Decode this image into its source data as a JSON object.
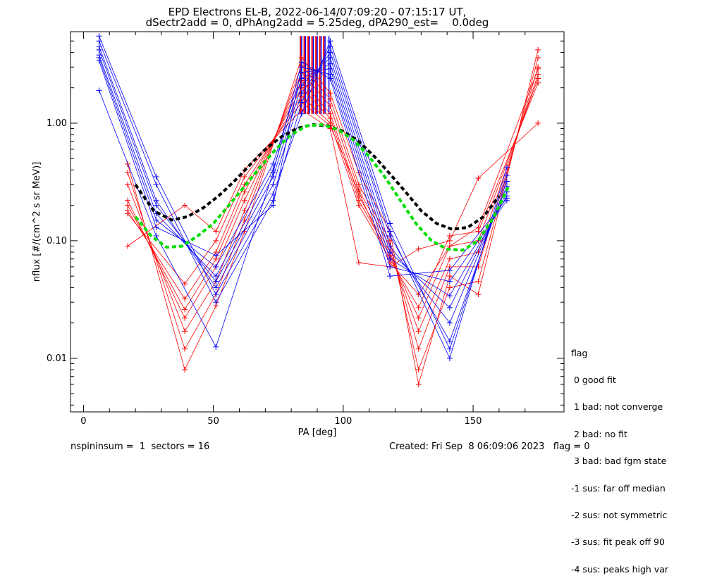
{
  "title_lines": [
    "EPD Electrons EL-B, 2022-06-14/07:09:20 - 07:15:17 UT,",
    "dSectr2add = 0, dPhAng2add = 5.25deg, dPA290_est=    0.0deg"
  ],
  "legend": {
    "title": "flag",
    "items": [
      " 0 good fit",
      " 1 bad: not converge",
      " 2 bad: no fit",
      " 3 bad: bad fgm state",
      "-1 sus: far off median",
      "-2 sus: not symmetric",
      "-3 sus: fit peak off 90",
      "-4 sus: peaks high var"
    ]
  },
  "footer": {
    "left": "nspininsum =  1  sectors = 16",
    "right": "Created: Fri Sep  8 06:09:06 2023   flag = 0"
  },
  "colors": {
    "red_series": "#ff0000",
    "blue_series": "#0000ff",
    "black_fit": "#000000",
    "green_fit": "#00dd00"
  },
  "chart_data": {
    "type": "line",
    "xlabel": "PA [deg]",
    "ylabel": "nflux [#/(cm^2 s sr MeV)]",
    "xlim": [
      -5,
      185
    ],
    "ylim": [
      0.0035,
      6.0
    ],
    "yscale": "log",
    "xticks": [
      0,
      50,
      100,
      150
    ],
    "xtick_labels": [
      "0",
      "50",
      "100",
      "150"
    ],
    "yticks": [
      0.01,
      0.1,
      1.0
    ],
    "ytick_labels": [
      "0.01",
      "0.10",
      "1.00"
    ],
    "grid": false,
    "series": [
      {
        "color": "red",
        "x": [
          17,
          39,
          51,
          62,
          84,
          95,
          106,
          118,
          129,
          141,
          152,
          175
        ],
        "values": [
          0.45,
          0.008,
          0.028,
          0.12,
          3.6,
          1.8,
          0.38,
          0.12,
          0.006,
          0.05,
          0.035,
          4.2
        ]
      },
      {
        "color": "red",
        "x": [
          17,
          39,
          51,
          62,
          84,
          95,
          106,
          118,
          129,
          141,
          152,
          175
        ],
        "values": [
          0.38,
          0.012,
          0.035,
          0.15,
          3.1,
          1.6,
          0.3,
          0.1,
          0.008,
          0.04,
          0.045,
          3.6
        ]
      },
      {
        "color": "red",
        "x": [
          17,
          39,
          51,
          62,
          84,
          95,
          106,
          118,
          129,
          141,
          152,
          175
        ],
        "values": [
          0.3,
          0.017,
          0.045,
          0.18,
          2.7,
          1.4,
          0.27,
          0.09,
          0.012,
          0.06,
          0.06,
          3.0
        ]
      },
      {
        "color": "red",
        "x": [
          17,
          39,
          51,
          62,
          84,
          95,
          106,
          118,
          129,
          141,
          152,
          175
        ],
        "values": [
          0.22,
          0.022,
          0.06,
          0.22,
          2.3,
          1.2,
          0.24,
          0.08,
          0.017,
          0.07,
          0.08,
          2.6
        ]
      },
      {
        "color": "red",
        "x": [
          17,
          39,
          51,
          62,
          84,
          95,
          106,
          118,
          129,
          141,
          152,
          175
        ],
        "values": [
          0.2,
          0.026,
          0.07,
          0.26,
          2.0,
          1.1,
          0.22,
          0.075,
          0.022,
          0.09,
          0.1,
          2.4
        ]
      },
      {
        "color": "red",
        "x": [
          17,
          39,
          51,
          62,
          84,
          95,
          106,
          118,
          129,
          141,
          152,
          175
        ],
        "values": [
          0.18,
          0.032,
          0.08,
          0.3,
          1.7,
          1.0,
          0.2,
          0.07,
          0.027,
          0.11,
          0.12,
          2.2
        ]
      },
      {
        "color": "red",
        "x": [
          17,
          39,
          51,
          62,
          84,
          95,
          106,
          118,
          129,
          141,
          152,
          175
        ],
        "values": [
          0.17,
          0.043,
          0.1,
          0.35,
          1.5,
          0.95,
          0.26,
          0.065,
          0.035,
          0.09,
          0.13,
          2.9
        ]
      },
      {
        "color": "red",
        "x": [
          17,
          39,
          51,
          62,
          84,
          95,
          106,
          118,
          129,
          141,
          152,
          175
        ],
        "values": [
          0.09,
          0.2,
          0.12,
          0.4,
          1.3,
          0.9,
          0.065,
          0.06,
          0.085,
          0.1,
          0.34,
          1.0
        ]
      },
      {
        "color": "blue",
        "x": [
          6,
          28,
          51,
          73,
          84,
          95,
          118,
          141,
          163
        ],
        "values": [
          5.5,
          0.35,
          0.035,
          0.25,
          1.2,
          5.0,
          0.14,
          0.012,
          0.36
        ]
      },
      {
        "color": "blue",
        "x": [
          6,
          28,
          51,
          73,
          84,
          95,
          118,
          141,
          163
        ],
        "values": [
          5.0,
          0.3,
          0.03,
          0.22,
          1.5,
          4.5,
          0.12,
          0.01,
          0.42
        ]
      },
      {
        "color": "blue",
        "x": [
          6,
          28,
          51,
          73,
          84,
          95,
          118,
          141,
          163
        ],
        "values": [
          4.5,
          0.22,
          0.04,
          0.3,
          1.8,
          4.0,
          0.11,
          0.014,
          0.32
        ]
      },
      {
        "color": "blue",
        "x": [
          6,
          28,
          51,
          73,
          84,
          95,
          118,
          141,
          163
        ],
        "values": [
          4.2,
          0.2,
          0.045,
          0.35,
          2.1,
          3.6,
          0.09,
          0.02,
          0.29
        ]
      },
      {
        "color": "blue",
        "x": [
          6,
          28,
          51,
          73,
          84,
          95,
          118,
          141,
          163
        ],
        "values": [
          3.8,
          0.17,
          0.05,
          0.4,
          2.4,
          3.2,
          0.08,
          0.027,
          0.26
        ]
      },
      {
        "color": "blue",
        "x": [
          6,
          28,
          51,
          73,
          84,
          95,
          118,
          141,
          163
        ],
        "values": [
          3.6,
          0.15,
          0.06,
          0.45,
          2.7,
          2.9,
          0.07,
          0.034,
          0.24
        ]
      },
      {
        "color": "blue",
        "x": [
          6,
          28,
          51,
          73,
          84,
          95,
          118,
          141,
          163
        ],
        "values": [
          3.4,
          0.13,
          0.075,
          0.2,
          3.0,
          2.6,
          0.06,
          0.045,
          0.22
        ]
      },
      {
        "color": "blue",
        "x": [
          6,
          28,
          51,
          73,
          84,
          95,
          118,
          141,
          163
        ],
        "values": [
          1.9,
          0.11,
          0.0125,
          0.38,
          3.3,
          2.4,
          0.05,
          0.056,
          0.23
        ]
      },
      {
        "color": "black",
        "dashed": true,
        "x": [
          20,
          27,
          34,
          40,
          46,
          52,
          58,
          64,
          70,
          76,
          82,
          88,
          94,
          100,
          106,
          112,
          118,
          124,
          130,
          136,
          142,
          148,
          154,
          160
        ],
        "values": [
          0.3,
          0.18,
          0.15,
          0.16,
          0.19,
          0.24,
          0.32,
          0.44,
          0.6,
          0.76,
          0.9,
          0.97,
          0.95,
          0.85,
          0.7,
          0.52,
          0.37,
          0.26,
          0.18,
          0.14,
          0.125,
          0.13,
          0.16,
          0.24
        ]
      },
      {
        "color": "green",
        "dashed": true,
        "x": [
          20,
          26,
          32,
          38,
          44,
          50,
          56,
          62,
          68,
          74,
          80,
          86,
          92,
          98,
          104,
          110,
          116,
          122,
          128,
          134,
          140,
          146,
          152,
          158,
          164
        ],
        "values": [
          0.16,
          0.11,
          0.088,
          0.09,
          0.11,
          0.14,
          0.2,
          0.29,
          0.42,
          0.6,
          0.8,
          0.95,
          0.97,
          0.88,
          0.72,
          0.52,
          0.35,
          0.22,
          0.14,
          0.1,
          0.085,
          0.083,
          0.1,
          0.16,
          0.3
        ]
      }
    ],
    "vertical_bars": {
      "y_range": [
        1.2,
        5.5
      ],
      "red_x": [
        83.5,
        85,
        86.5,
        88,
        89.5,
        91,
        92.5
      ],
      "blue_x": [
        84,
        85.5,
        87,
        88.5,
        90,
        91.5,
        93,
        94.5
      ]
    }
  }
}
